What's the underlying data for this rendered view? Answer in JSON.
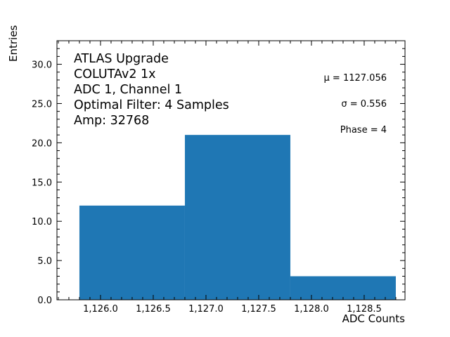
{
  "chart_data": {
    "type": "bar",
    "subtype": "histogram",
    "title": "",
    "xlabel": "ADC Counts",
    "ylabel": "Entries",
    "bins": [
      {
        "left": 1125.8,
        "right": 1126.8,
        "count": 12
      },
      {
        "left": 1126.8,
        "right": 1127.8,
        "count": 21
      },
      {
        "left": 1127.8,
        "right": 1128.8,
        "count": 3
      }
    ],
    "categories": [
      "1125.8-1126.8",
      "1126.8-1127.8",
      "1127.8-1128.8"
    ],
    "values": [
      12,
      21,
      3
    ],
    "xlim": [
      1125.587,
      1128.887
    ],
    "ylim": [
      0,
      33.0
    ],
    "x_ticks": [
      1126.0,
      1126.5,
      1127.0,
      1127.5,
      1128.0,
      1128.5
    ],
    "x_tick_labels": [
      "1,126.0",
      "1,126.5",
      "1,127.0",
      "1,127.5",
      "1,128.0",
      "1,128.5"
    ],
    "y_ticks": [
      0,
      5,
      10,
      15,
      20,
      25,
      30
    ],
    "y_tick_labels": [
      "0.0",
      "5.0",
      "10.0",
      "15.0",
      "20.0",
      "25.0",
      "30.0"
    ],
    "grid": false,
    "legend": null,
    "bar_color": "#1f77b4",
    "annotations": {
      "info_lines": [
        "ATLAS Upgrade",
        "COLUTAv2 1x",
        "ADC 1, Channel 1",
        "Optimal Filter: 4 Samples",
        "Amp: 32768"
      ],
      "mu": "μ = 1127.056",
      "sigma": "σ = 0.556",
      "phase": "Phase = 4"
    }
  }
}
